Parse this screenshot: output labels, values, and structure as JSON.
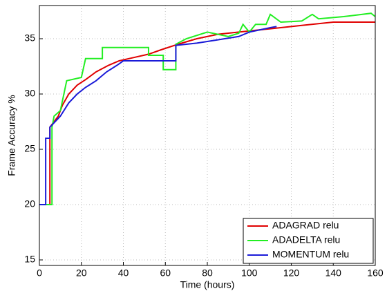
{
  "chart_data": {
    "type": "line",
    "x_label": "Time (hours)",
    "y_label": "Frame Accuracy %",
    "xlim": [
      0,
      160
    ],
    "ylim": [
      14.5,
      38
    ],
    "xticks": [
      0,
      20,
      40,
      60,
      80,
      100,
      120,
      140,
      160
    ],
    "yticks": [
      15,
      20,
      25,
      30,
      35
    ],
    "grid": true,
    "legend": "lower right",
    "series": [
      {
        "name": "ADAGRAD relu",
        "color": "#e00000",
        "x": [
          0,
          5,
          5,
          7,
          9,
          11,
          14,
          18,
          22,
          27,
          33,
          38,
          45,
          52,
          58,
          66,
          75,
          85,
          95,
          110,
          125,
          140,
          160
        ],
        "values": [
          20,
          20,
          27,
          27.5,
          28,
          29,
          30,
          30.8,
          31.3,
          32,
          32.6,
          33,
          33.3,
          33.6,
          34,
          34.5,
          35,
          35.4,
          35.6,
          35.9,
          36.2,
          36.5,
          36.5
        ]
      },
      {
        "name": "ADADELTA relu",
        "color": "#22ee22",
        "x": [
          0,
          6,
          6,
          7,
          10,
          13,
          20,
          22,
          30,
          30,
          52,
          52,
          59,
          59,
          65,
          65,
          70,
          80,
          90,
          95,
          97,
          100,
          103,
          108,
          110,
          115,
          125,
          130,
          133,
          145,
          158,
          160
        ],
        "values": [
          20,
          20,
          27,
          28,
          28.5,
          31.2,
          31.5,
          33.2,
          33.2,
          34.2,
          34.2,
          33.5,
          33.5,
          32.2,
          32.2,
          34.5,
          35,
          35.6,
          35.2,
          35.5,
          36.3,
          35.6,
          36.3,
          36.3,
          37.2,
          36.5,
          36.6,
          37.2,
          36.8,
          37,
          37.3,
          37
        ]
      },
      {
        "name": "MOMENTUM relu",
        "color": "#1a1ad8",
        "x": [
          0,
          3,
          3,
          5,
          5,
          10,
          14,
          18,
          22,
          27,
          32,
          37,
          40,
          65,
          65,
          75,
          85,
          95,
          100,
          110,
          113
        ],
        "values": [
          20,
          20,
          26,
          26,
          27,
          28,
          29.2,
          30,
          30.6,
          31.2,
          32,
          32.6,
          33,
          33,
          34.4,
          34.6,
          34.9,
          35.2,
          35.6,
          36,
          36.1
        ]
      }
    ]
  }
}
